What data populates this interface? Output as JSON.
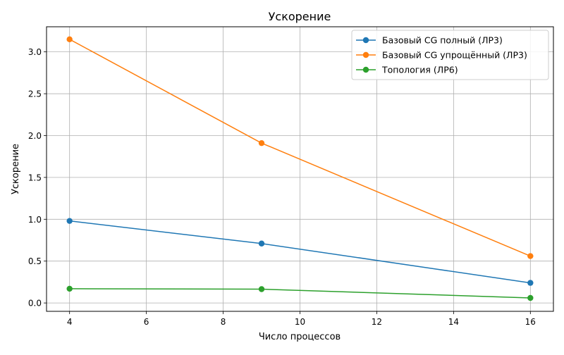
{
  "chart_data": {
    "type": "line",
    "title": "Ускорение",
    "xlabel": "Число процессов",
    "ylabel": "Ускорение",
    "xlim": [
      3.4,
      16.6
    ],
    "ylim": [
      -0.1,
      3.3
    ],
    "xticks": [
      4,
      6,
      8,
      10,
      12,
      14,
      16
    ],
    "xtick_labels": [
      "4",
      "6",
      "8",
      "10",
      "12",
      "14",
      "16"
    ],
    "yticks": [
      0.0,
      0.5,
      1.0,
      1.5,
      2.0,
      2.5,
      3.0
    ],
    "ytick_labels": [
      "0.0",
      "0.5",
      "1.0",
      "1.5",
      "2.0",
      "2.5",
      "3.0"
    ],
    "grid": true,
    "legend_position": "top-right",
    "x": [
      4,
      9,
      16
    ],
    "series": [
      {
        "name": "Базовый CG полный (ЛР3)",
        "color": "#1f77b4",
        "marker": "circle",
        "values": [
          0.98,
          0.71,
          0.24
        ]
      },
      {
        "name": "Базовый CG упрощённый (ЛР3)",
        "color": "#ff7f0e",
        "marker": "circle",
        "values": [
          3.15,
          1.91,
          0.56
        ]
      },
      {
        "name": "Топология (ЛР6)",
        "color": "#2ca02c",
        "marker": "circle",
        "values": [
          0.17,
          0.165,
          0.06
        ]
      }
    ]
  }
}
